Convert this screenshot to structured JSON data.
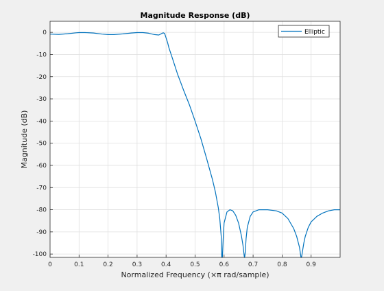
{
  "chart_data": {
    "type": "line",
    "title": "Magnitude Response (dB)",
    "xlabel": "Normalized Frequency (×π rad/sample)",
    "ylabel": "Magnitude (dB)",
    "xlim": [
      0,
      1
    ],
    "ylim": [
      -101.5,
      5
    ],
    "xticks": [
      0,
      0.1,
      0.2,
      0.3,
      0.4,
      0.5,
      0.6,
      0.7,
      0.8,
      0.9
    ],
    "xtick_labels": [
      "0",
      "0.1",
      "0.2",
      "0.3",
      "0.4",
      "0.5",
      "0.6",
      "0.7",
      "0.8",
      "0.9"
    ],
    "yticks": [
      0,
      -10,
      -20,
      -30,
      -40,
      -50,
      -60,
      -70,
      -80,
      -90,
      -100
    ],
    "ytick_labels": [
      "0",
      "-10",
      "-20",
      "-30",
      "-40",
      "-50",
      "-60",
      "-70",
      "-80",
      "-90",
      "-100"
    ],
    "grid": true,
    "legend_position": "top-right",
    "series": [
      {
        "name": "Elliptic",
        "color": "#0072bd",
        "x": [
          0,
          0.03,
          0.06,
          0.09,
          0.1,
          0.12,
          0.15,
          0.18,
          0.2,
          0.22,
          0.25,
          0.28,
          0.3,
          0.32,
          0.34,
          0.36,
          0.375,
          0.385,
          0.39,
          0.395,
          0.4,
          0.405,
          0.41,
          0.42,
          0.43,
          0.44,
          0.45,
          0.46,
          0.48,
          0.5,
          0.52,
          0.54,
          0.56,
          0.57,
          0.58,
          0.585,
          0.59,
          0.592,
          0.594,
          0.597,
          0.6,
          0.61,
          0.62,
          0.63,
          0.64,
          0.65,
          0.66,
          0.665,
          0.67,
          0.671,
          0.673,
          0.676,
          0.68,
          0.69,
          0.7,
          0.72,
          0.75,
          0.78,
          0.8,
          0.82,
          0.84,
          0.85,
          0.86,
          0.865,
          0.867,
          0.87,
          0.875,
          0.88,
          0.89,
          0.9,
          0.92,
          0.94,
          0.96,
          0.98,
          1.0
        ],
        "y": [
          -0.8,
          -0.9,
          -0.6,
          -0.2,
          -0.1,
          -0.1,
          -0.3,
          -0.8,
          -1.0,
          -1.0,
          -0.7,
          -0.3,
          -0.1,
          -0.1,
          -0.4,
          -1.0,
          -1.2,
          -0.5,
          -0.2,
          -0.5,
          -2.5,
          -4.5,
          -7,
          -11,
          -15,
          -19,
          -22.5,
          -26,
          -32.5,
          -40,
          -48,
          -57,
          -66.5,
          -72,
          -79,
          -84,
          -92,
          -101.5,
          -101.5,
          -93,
          -86,
          -81,
          -80,
          -80.5,
          -82.5,
          -86,
          -92,
          -96,
          -101.5,
          -101.5,
          -99,
          -93,
          -88,
          -83,
          -81,
          -80,
          -80,
          -80.5,
          -81.5,
          -84,
          -88.5,
          -92,
          -97,
          -101.5,
          -101.5,
          -99,
          -95,
          -92,
          -88,
          -85.5,
          -83,
          -81.5,
          -80.5,
          -80,
          -80
        ]
      }
    ]
  }
}
